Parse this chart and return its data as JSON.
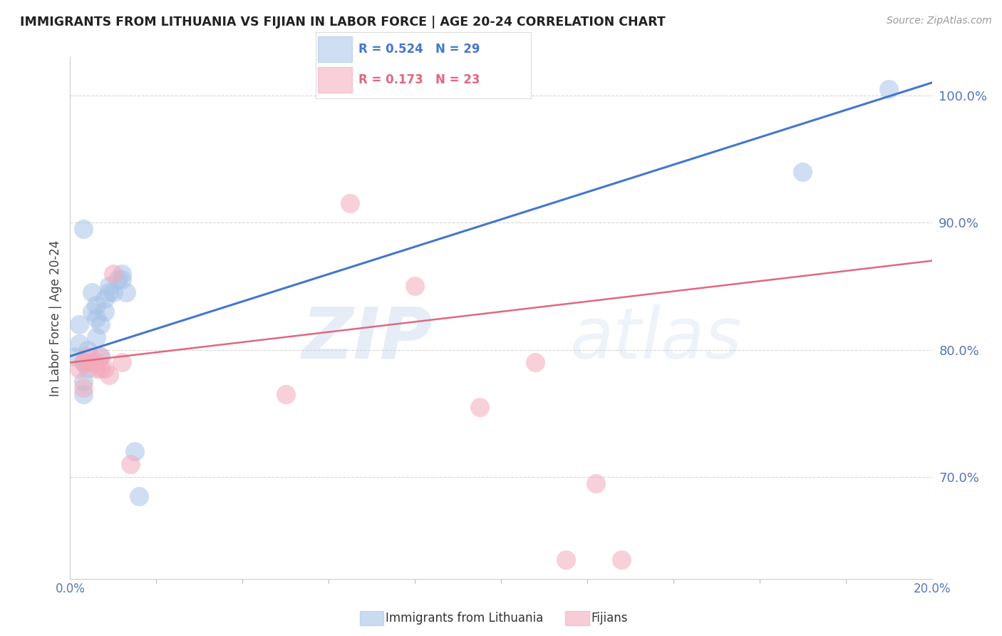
{
  "title": "IMMIGRANTS FROM LITHUANIA VS FIJIAN IN LABOR FORCE | AGE 20-24 CORRELATION CHART",
  "source": "Source: ZipAtlas.com",
  "ylabel": "In Labor Force | Age 20-24",
  "ylabel_right_ticks": [
    70.0,
    80.0,
    90.0,
    100.0
  ],
  "xmin": 0.0,
  "xmax": 0.2,
  "ymin": 62.0,
  "ymax": 103.0,
  "blue_R": "0.524",
  "blue_N": "29",
  "pink_R": "0.173",
  "pink_N": "23",
  "blue_color": "#A8C4E8",
  "pink_color": "#F4AABB",
  "blue_line_color": "#4477CC",
  "pink_line_color": "#E06880",
  "legend_label_blue": "Immigrants from Lithuania",
  "legend_label_pink": "Fijians",
  "watermark_zip": "ZIP",
  "watermark_atlas": "atlas",
  "grid_color": "#CCCCCC",
  "background_color": "#FFFFFF",
  "blue_points_x": [
    0.001,
    0.002,
    0.002,
    0.003,
    0.003,
    0.003,
    0.004,
    0.004,
    0.005,
    0.005,
    0.006,
    0.006,
    0.006,
    0.007,
    0.007,
    0.008,
    0.008,
    0.009,
    0.009,
    0.01,
    0.011,
    0.012,
    0.012,
    0.013,
    0.015,
    0.016,
    0.003,
    0.17,
    0.19
  ],
  "blue_points_y": [
    79.5,
    80.5,
    82.0,
    76.5,
    77.5,
    79.0,
    78.5,
    80.0,
    83.0,
    84.5,
    81.0,
    82.5,
    83.5,
    79.5,
    82.0,
    83.0,
    84.0,
    84.5,
    85.0,
    84.5,
    85.5,
    86.0,
    85.5,
    84.5,
    72.0,
    68.5,
    89.5,
    94.0,
    100.5
  ],
  "pink_points_x": [
    0.002,
    0.003,
    0.003,
    0.004,
    0.004,
    0.005,
    0.006,
    0.006,
    0.007,
    0.007,
    0.008,
    0.009,
    0.01,
    0.012,
    0.014,
    0.05,
    0.065,
    0.08,
    0.095,
    0.108,
    0.115,
    0.122,
    0.128
  ],
  "pink_points_y": [
    78.5,
    77.0,
    79.0,
    79.0,
    79.5,
    79.0,
    78.5,
    79.0,
    78.5,
    79.5,
    78.5,
    78.0,
    86.0,
    79.0,
    71.0,
    76.5,
    91.5,
    85.0,
    75.5,
    79.0,
    63.5,
    69.5,
    63.5
  ],
  "blue_line_x0": 0.0,
  "blue_line_y0": 79.5,
  "blue_line_x1": 0.2,
  "blue_line_y1": 101.0,
  "pink_line_x0": 0.0,
  "pink_line_y0": 79.0,
  "pink_line_x1": 0.2,
  "pink_line_y1": 87.0
}
